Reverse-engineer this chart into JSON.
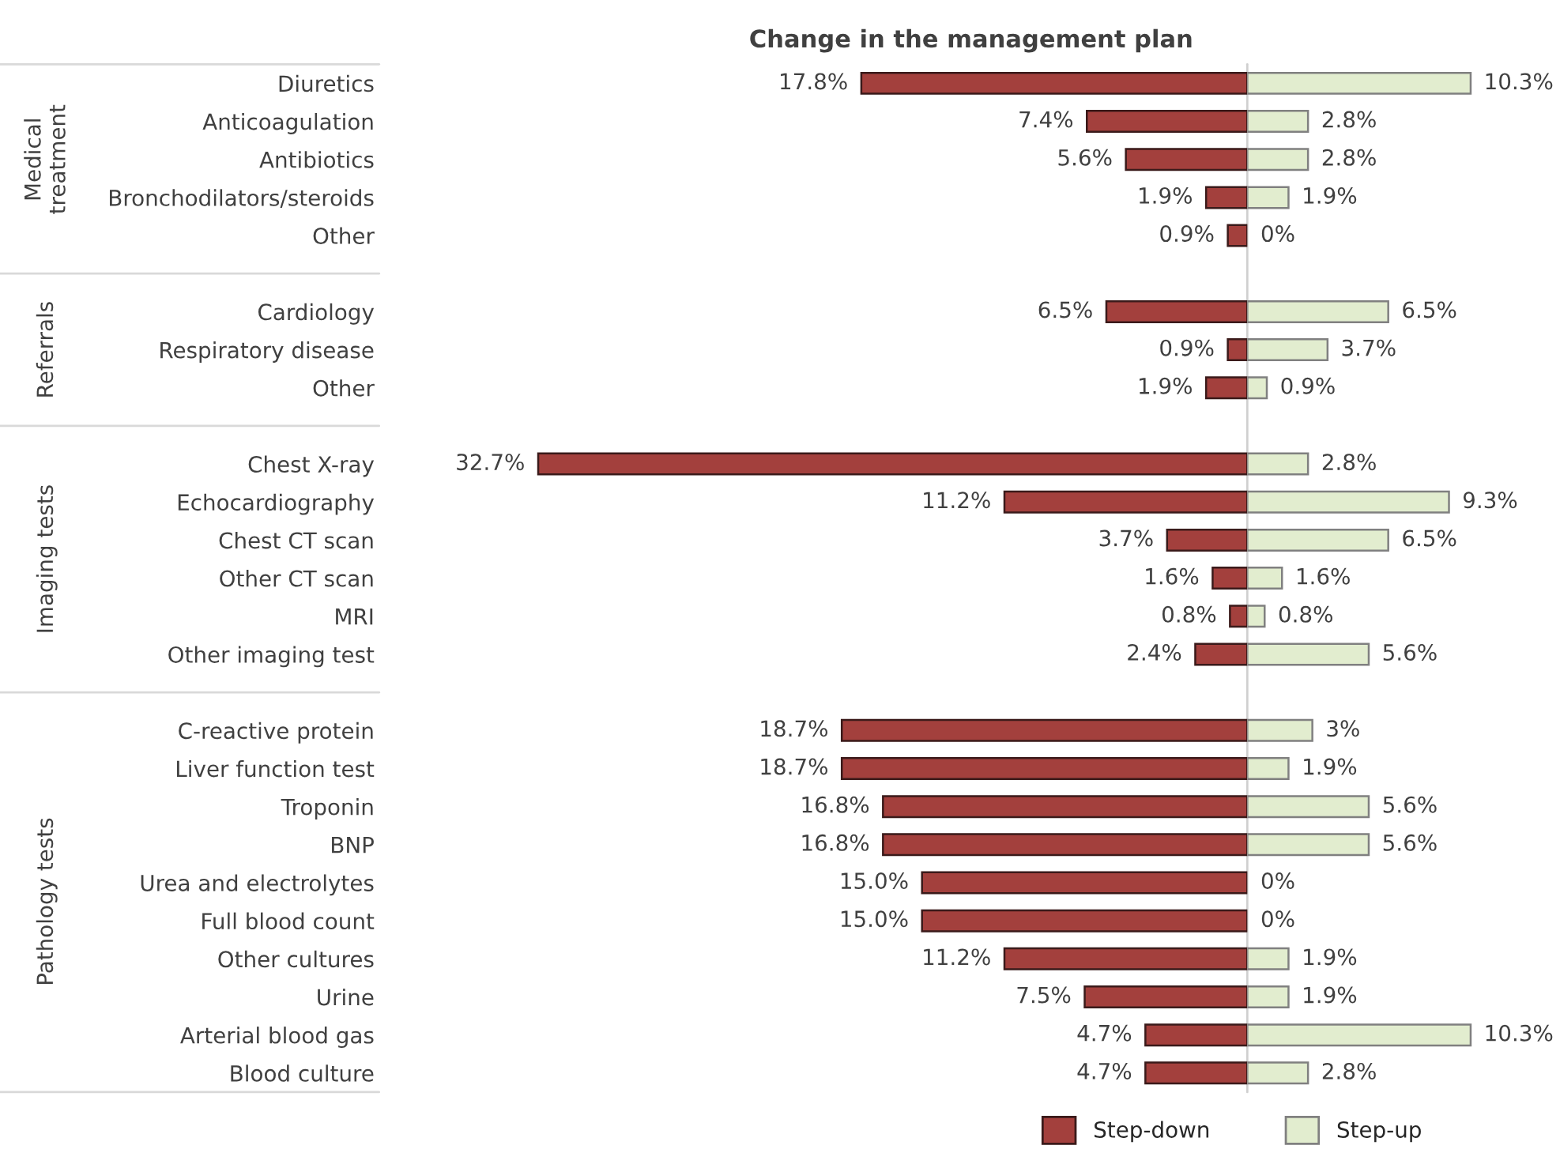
{
  "chart_data": [
    {
      "type": "bar",
      "orientation": "horizontal",
      "title": "Change in the management plan",
      "categories": [
        "Diuretics",
        "Anticoagulation",
        "Antibiotics",
        "Bronchodilators/steroids",
        "Other",
        null,
        "Cardiology",
        "Respiratory disease",
        "Other",
        null,
        "Chest X-ray",
        "Echocardiography",
        "Chest CT scan",
        "Other CT scan",
        "MRI",
        "Other imaging test",
        null,
        "C-reactive protein",
        "Liver function test",
        "Troponin",
        "BNP",
        "Urea and electrolytes",
        "Full blood count",
        "Other cultures",
        "Urine",
        "Arterial blood gas",
        "Blood culture"
      ],
      "series": [
        {
          "name": "Step-down",
          "color": "#a3403d",
          "values": [
            17.8,
            7.4,
            5.6,
            1.9,
            0.9,
            null,
            6.5,
            0.9,
            1.9,
            null,
            32.7,
            11.2,
            3.7,
            1.6,
            0.8,
            2.4,
            null,
            18.7,
            18.7,
            16.8,
            16.8,
            15.0,
            15.0,
            11.2,
            7.5,
            4.7,
            4.7
          ],
          "value_labels": [
            "17.8%",
            "7.4%",
            "5.6%",
            "1.9%",
            "0.9%",
            null,
            "6.5%",
            "0.9%",
            "1.9%",
            null,
            "32.7%",
            "11.2%",
            "3.7%",
            "1.6%",
            "0.8%",
            "2.4%",
            null,
            "18.7%",
            "18.7%",
            "16.8%",
            "16.8%",
            "15.0%",
            "15.0%",
            "11.2%",
            "7.5%",
            "4.7%",
            "4.7%"
          ]
        }
      ],
      "annotations": [
        "Medical\ntreatment",
        "Referrals",
        "Imaging tests",
        "Pathology tests"
      ],
      "ref_lines": [
        {
          "axis": "x",
          "value": 0,
          "color": "#d0d0d0"
        }
      ],
      "legend": "bottom right",
      "grid": false
    },
    {
      "type": "bar",
      "orientation": "horizontal",
      "categories": [
        null,
        null,
        null,
        null,
        null,
        null,
        null,
        null,
        null,
        null,
        null,
        null,
        null,
        null,
        null,
        null,
        null,
        null,
        null,
        null,
        null,
        null,
        null,
        null,
        null,
        null,
        null
      ],
      "series": [
        {
          "name": "Step-up",
          "color": "#e2edcf",
          "values": [
            10.3,
            2.8,
            2.8,
            1.9,
            0,
            null,
            6.5,
            3.7,
            0.9,
            null,
            2.8,
            9.3,
            6.5,
            1.6,
            0.8,
            5.6,
            null,
            3,
            1.9,
            5.6,
            5.6,
            0,
            0,
            1.9,
            1.9,
            10.3,
            2.8
          ],
          "value_labels": [
            "10.3%",
            "2.8%",
            "2.8%",
            "1.9%",
            "0%",
            null,
            "6.5%",
            "3.7%",
            "0.9%",
            null,
            "2.8%",
            "9.3%",
            "6.5%",
            "1.6%",
            "0.8%",
            "5.6%",
            null,
            "3%",
            "1.9%",
            "5.6%",
            "5.6%",
            "0%",
            "0%",
            "1.9%",
            "1.9%",
            "10.3%",
            "2.8%"
          ]
        }
      ],
      "legend": "bottom left",
      "grid": false
    }
  ]
}
